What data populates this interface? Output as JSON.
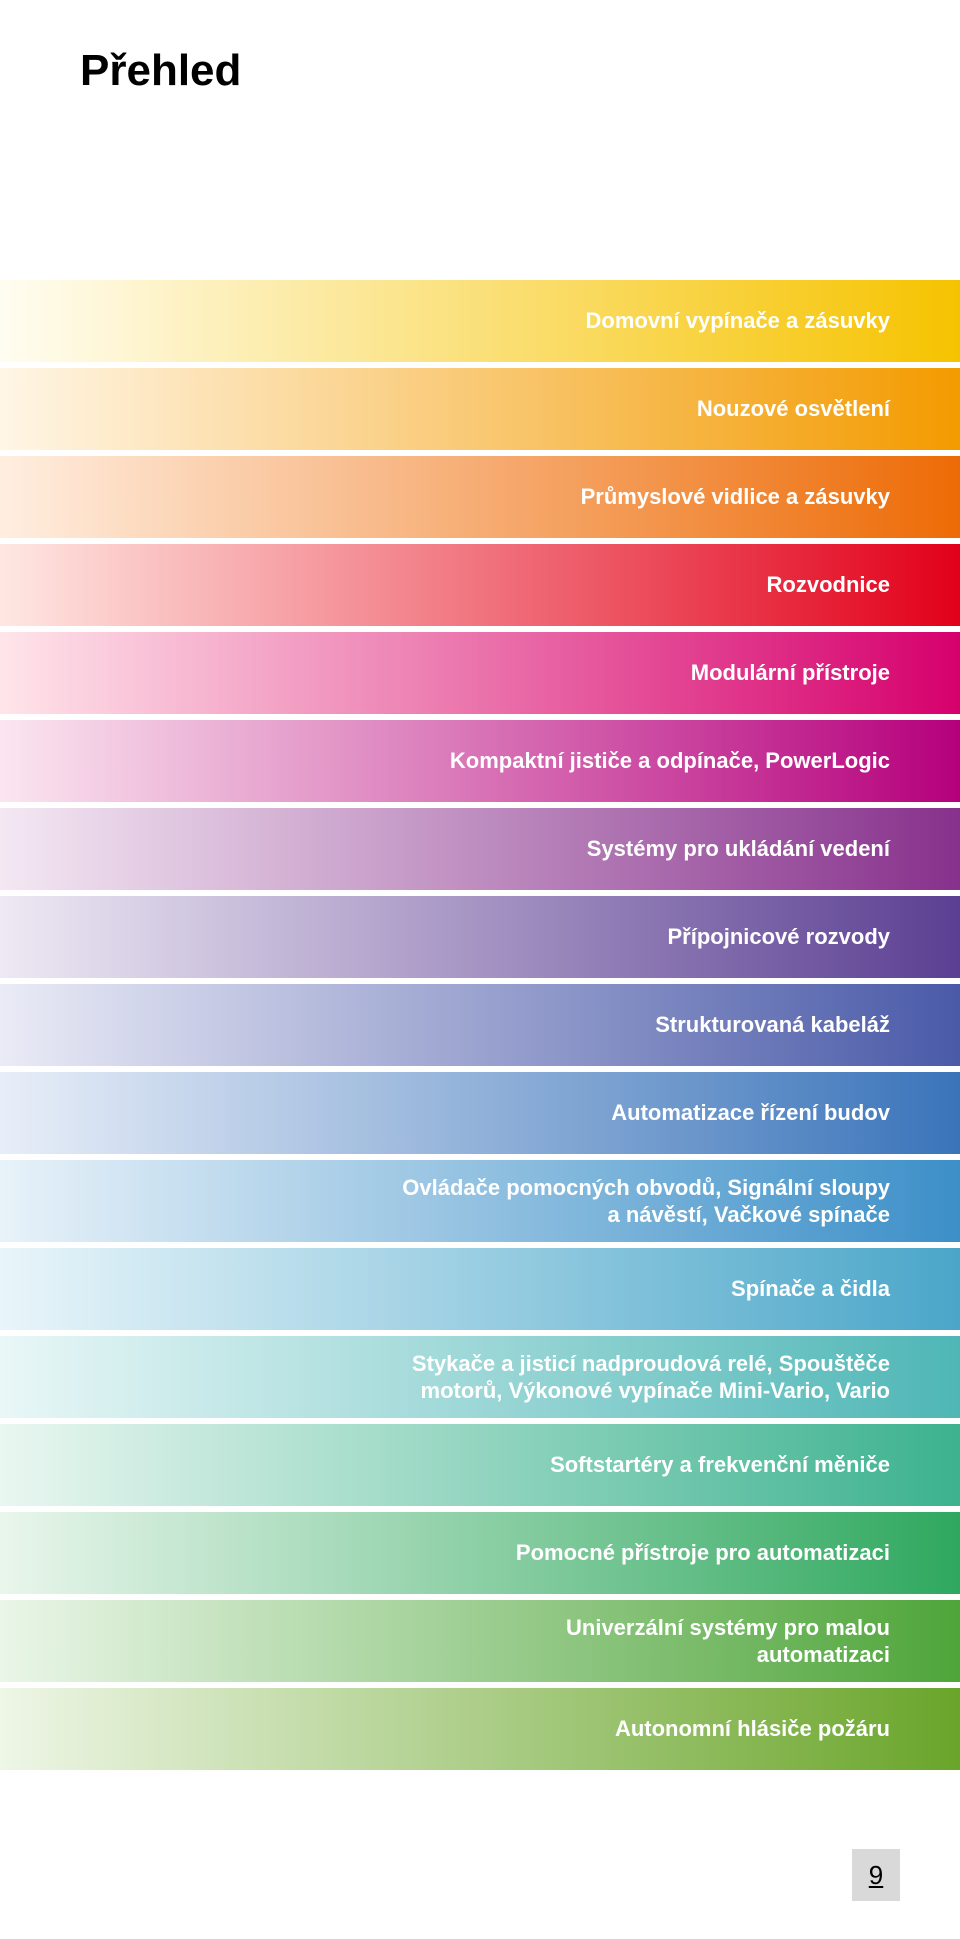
{
  "title": "Přehled",
  "page_number": "9",
  "page_number_box_bg": "#d9d9d9",
  "bands": [
    {
      "label": "Domovní vypínače a zásuvky",
      "from": "#fffdf2",
      "to": "#f6c300"
    },
    {
      "label": "Nouzové osvětlení",
      "from": "#fff6e6",
      "to": "#f39b00"
    },
    {
      "label": "Průmyslové vidlice a zásuvky",
      "from": "#ffeee0",
      "to": "#ed6b06"
    },
    {
      "label": "Rozvodnice",
      "from": "#ffe7e2",
      "to": "#e2001a"
    },
    {
      "label": "Modulární přístroje",
      "from": "#ffe5ea",
      "to": "#d6006d"
    },
    {
      "label": "Kompaktní jističe a odpínače, PowerLogic",
      "from": "#fbe6f0",
      "to": "#b5007c"
    },
    {
      "label": "Systémy pro ukládání vedení",
      "from": "#f4e8f3",
      "to": "#87318c"
    },
    {
      "label": "Přípojnicové rozvody",
      "from": "#eee9f4",
      "to": "#5b3f92"
    },
    {
      "label": "Strukturovaná kabeláž",
      "from": "#eaebf6",
      "to": "#4a5aa8"
    },
    {
      "label": "Automatizace řízení budov",
      "from": "#e8eef8",
      "to": "#3a74ba"
    },
    {
      "label": "Ovládače pomocných obvodů, Signální sloupy\na návěstí, Vačkové spínače",
      "from": "#e8f2f9",
      "to": "#3c8fc8"
    },
    {
      "label": "Spínače a čidla",
      "from": "#e9f5fa",
      "to": "#4aa6c9"
    },
    {
      "label": "Stykače a jisticí nadproudová relé, Spouštěče\nmotorů, Výkonové vypínače Mini-Vario, Vario",
      "from": "#e9f7f7",
      "to": "#4fb6b6"
    },
    {
      "label": "Softstartéry a frekvenční měniče",
      "from": "#e9f7f1",
      "to": "#3cb28e"
    },
    {
      "label": "Pomocné přístroje pro automatizaci",
      "from": "#e9f6ec",
      "to": "#2fa85f"
    },
    {
      "label": "Univerzální systémy pro malou\nautomatizaci",
      "from": "#eaf6e8",
      "to": "#4fa53a"
    },
    {
      "label": "Autonomní hlásiče požáru",
      "from": "#eef6e6",
      "to": "#6aa52a"
    }
  ]
}
